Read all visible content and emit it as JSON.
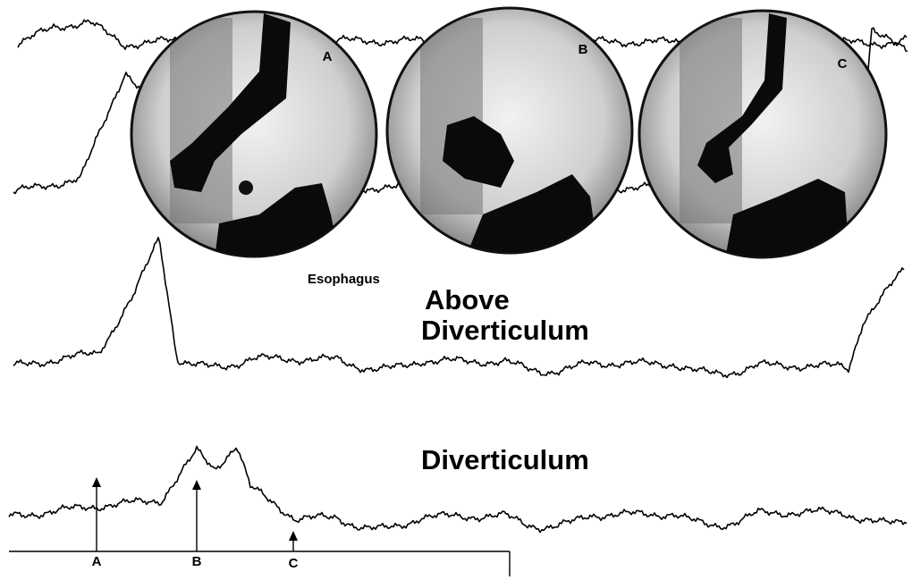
{
  "images": [
    {
      "label": "A"
    },
    {
      "label": "B"
    },
    {
      "label": "C"
    }
  ],
  "labels": {
    "esophagus": "Esophagus",
    "above_line1": "Above",
    "above_line2": "Diverticulum",
    "diverticulum": "Diverticulum"
  },
  "markers": [
    "A",
    "B",
    "C"
  ]
}
